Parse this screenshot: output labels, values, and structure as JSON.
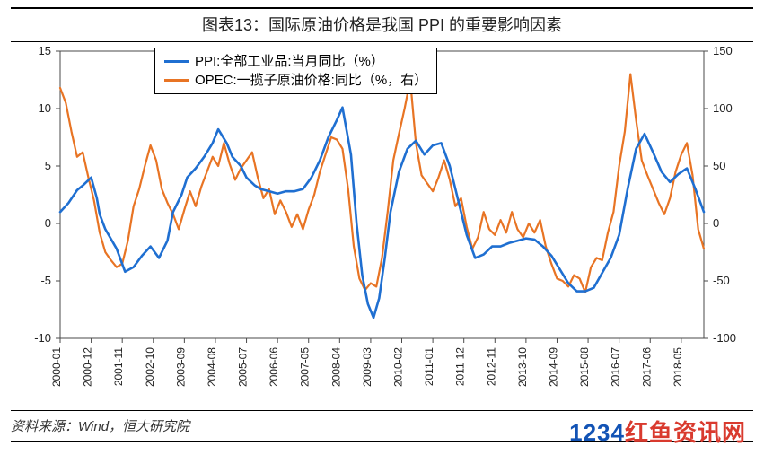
{
  "title": "图表13：国际原油价格是我国 PPI 的重要影响因素",
  "source": "资料来源：Wind，恒大研究院",
  "watermark_num": "1234",
  "watermark_txt": "红鱼资讯网",
  "chart": {
    "type": "line",
    "background_color": "#ffffff",
    "plot_border_color": "#4a4a4a",
    "plot_border_width": 1,
    "tick_color": "#4a4a4a",
    "left_axis": {
      "min": -10,
      "max": 15,
      "ticks": [
        -10,
        -5,
        0,
        5,
        10,
        15
      ]
    },
    "right_axis": {
      "min": -100,
      "max": 150,
      "ticks": [
        -100,
        -50,
        0,
        50,
        100,
        150
      ]
    },
    "x_ticks": [
      "2000-01",
      "2000-12",
      "2001-11",
      "2002-10",
      "2003-09",
      "2004-08",
      "2005-07",
      "2006-06",
      "2007-05",
      "2008-04",
      "2009-03",
      "2010-02",
      "2011-01",
      "2011-12",
      "2012-11",
      "2013-10",
      "2014-09",
      "2015-08",
      "2016-07",
      "2017-06",
      "2018-05"
    ],
    "x_span_months": 228,
    "legend": {
      "series1": {
        "label": "PPI:全部工业品:当月同比（%）",
        "color": "#1f6fd1"
      },
      "series2": {
        "label": "OPEC:一揽子原油价格:同比（%，右）",
        "color": "#e87424"
      }
    },
    "series_ppi": {
      "color": "#1f6fd1",
      "width": 2.6,
      "axis": "left",
      "points": [
        [
          0,
          1.0
        ],
        [
          3,
          1.8
        ],
        [
          6,
          2.9
        ],
        [
          8,
          3.3
        ],
        [
          11,
          4.0
        ],
        [
          13,
          2.2
        ],
        [
          14,
          0.8
        ],
        [
          16,
          -0.5
        ],
        [
          20,
          -2.2
        ],
        [
          23,
          -4.2
        ],
        [
          26,
          -3.8
        ],
        [
          29,
          -2.8
        ],
        [
          32,
          -2.0
        ],
        [
          35,
          -3.0
        ],
        [
          38,
          -1.5
        ],
        [
          40,
          1.0
        ],
        [
          43,
          2.5
        ],
        [
          45,
          4.0
        ],
        [
          48,
          4.8
        ],
        [
          51,
          5.8
        ],
        [
          54,
          7.0
        ],
        [
          56,
          8.2
        ],
        [
          59,
          7.0
        ],
        [
          61,
          5.8
        ],
        [
          64,
          5.0
        ],
        [
          66,
          4.0
        ],
        [
          69,
          3.3
        ],
        [
          71,
          3.0
        ],
        [
          74,
          2.8
        ],
        [
          77,
          2.6
        ],
        [
          80,
          2.8
        ],
        [
          83,
          2.8
        ],
        [
          86,
          3.0
        ],
        [
          89,
          4.0
        ],
        [
          92,
          5.5
        ],
        [
          95,
          7.5
        ],
        [
          98,
          9.0
        ],
        [
          100,
          10.1
        ],
        [
          103,
          6.0
        ],
        [
          105,
          0.0
        ],
        [
          107,
          -4.5
        ],
        [
          109,
          -7.0
        ],
        [
          111,
          -8.2
        ],
        [
          113,
          -6.5
        ],
        [
          115,
          -3.0
        ],
        [
          117,
          1.0
        ],
        [
          120,
          4.5
        ],
        [
          123,
          6.5
        ],
        [
          126,
          7.2
        ],
        [
          129,
          6.0
        ],
        [
          132,
          6.8
        ],
        [
          135,
          7.0
        ],
        [
          138,
          5.0
        ],
        [
          141,
          2.0
        ],
        [
          144,
          -1.0
        ],
        [
          147,
          -3.0
        ],
        [
          150,
          -2.7
        ],
        [
          153,
          -2.0
        ],
        [
          156,
          -2.0
        ],
        [
          159,
          -1.7
        ],
        [
          162,
          -1.5
        ],
        [
          165,
          -1.3
        ],
        [
          168,
          -1.4
        ],
        [
          171,
          -2.0
        ],
        [
          174,
          -2.8
        ],
        [
          177,
          -4.0
        ],
        [
          180,
          -5.2
        ],
        [
          183,
          -5.9
        ],
        [
          186,
          -5.9
        ],
        [
          189,
          -5.6
        ],
        [
          192,
          -4.3
        ],
        [
          195,
          -3.0
        ],
        [
          198,
          -1.0
        ],
        [
          201,
          3.0
        ],
        [
          204,
          6.5
        ],
        [
          207,
          7.8
        ],
        [
          210,
          6.2
        ],
        [
          213,
          4.5
        ],
        [
          216,
          3.6
        ],
        [
          219,
          4.3
        ],
        [
          222,
          4.8
        ],
        [
          225,
          3.0
        ],
        [
          228,
          1.0
        ]
      ]
    },
    "series_opec": {
      "color": "#e87424",
      "width": 2.2,
      "axis": "right",
      "points": [
        [
          0,
          118
        ],
        [
          2,
          105
        ],
        [
          4,
          80
        ],
        [
          6,
          58
        ],
        [
          8,
          62
        ],
        [
          10,
          40
        ],
        [
          12,
          20
        ],
        [
          14,
          -8
        ],
        [
          16,
          -25
        ],
        [
          18,
          -32
        ],
        [
          20,
          -38
        ],
        [
          22,
          -35
        ],
        [
          24,
          -15
        ],
        [
          26,
          15
        ],
        [
          28,
          30
        ],
        [
          30,
          50
        ],
        [
          32,
          68
        ],
        [
          34,
          55
        ],
        [
          36,
          30
        ],
        [
          38,
          18
        ],
        [
          40,
          8
        ],
        [
          42,
          -5
        ],
        [
          44,
          12
        ],
        [
          46,
          28
        ],
        [
          48,
          15
        ],
        [
          50,
          32
        ],
        [
          52,
          45
        ],
        [
          54,
          58
        ],
        [
          56,
          50
        ],
        [
          58,
          70
        ],
        [
          60,
          52
        ],
        [
          62,
          38
        ],
        [
          64,
          48
        ],
        [
          66,
          55
        ],
        [
          68,
          62
        ],
        [
          70,
          40
        ],
        [
          72,
          22
        ],
        [
          74,
          30
        ],
        [
          76,
          8
        ],
        [
          78,
          20
        ],
        [
          80,
          10
        ],
        [
          82,
          -3
        ],
        [
          84,
          8
        ],
        [
          86,
          -5
        ],
        [
          88,
          12
        ],
        [
          90,
          25
        ],
        [
          92,
          45
        ],
        [
          94,
          60
        ],
        [
          96,
          75
        ],
        [
          98,
          73
        ],
        [
          100,
          65
        ],
        [
          102,
          30
        ],
        [
          104,
          -20
        ],
        [
          106,
          -48
        ],
        [
          108,
          -58
        ],
        [
          110,
          -52
        ],
        [
          112,
          -55
        ],
        [
          114,
          -30
        ],
        [
          116,
          10
        ],
        [
          118,
          55
        ],
        [
          120,
          78
        ],
        [
          122,
          100
        ],
        [
          124,
          125
        ],
        [
          126,
          70
        ],
        [
          128,
          42
        ],
        [
          130,
          35
        ],
        [
          132,
          28
        ],
        [
          134,
          40
        ],
        [
          136,
          55
        ],
        [
          138,
          38
        ],
        [
          140,
          15
        ],
        [
          142,
          22
        ],
        [
          144,
          -3
        ],
        [
          146,
          -22
        ],
        [
          148,
          -12
        ],
        [
          150,
          10
        ],
        [
          152,
          -5
        ],
        [
          154,
          -10
        ],
        [
          156,
          3
        ],
        [
          158,
          -8
        ],
        [
          160,
          10
        ],
        [
          162,
          -5
        ],
        [
          164,
          -12
        ],
        [
          166,
          0
        ],
        [
          168,
          -8
        ],
        [
          170,
          3
        ],
        [
          172,
          -20
        ],
        [
          174,
          -35
        ],
        [
          176,
          -48
        ],
        [
          178,
          -50
        ],
        [
          180,
          -55
        ],
        [
          182,
          -45
        ],
        [
          184,
          -48
        ],
        [
          186,
          -60
        ],
        [
          188,
          -38
        ],
        [
          190,
          -30
        ],
        [
          192,
          -32
        ],
        [
          194,
          -8
        ],
        [
          196,
          10
        ],
        [
          198,
          50
        ],
        [
          200,
          80
        ],
        [
          202,
          130
        ],
        [
          204,
          90
        ],
        [
          206,
          55
        ],
        [
          208,
          42
        ],
        [
          210,
          30
        ],
        [
          212,
          18
        ],
        [
          214,
          8
        ],
        [
          216,
          22
        ],
        [
          218,
          45
        ],
        [
          220,
          60
        ],
        [
          222,
          70
        ],
        [
          224,
          42
        ],
        [
          226,
          -5
        ],
        [
          228,
          -22
        ]
      ]
    }
  }
}
